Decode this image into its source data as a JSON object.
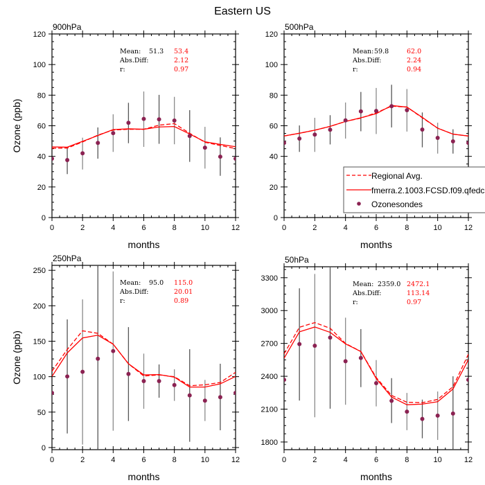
{
  "title": "Eastern US",
  "legend": {
    "placement": "inside panel 500hPa, lower-right",
    "entries": [
      {
        "label": "Regional Avg.",
        "style": "dashed",
        "color": "#ff0000"
      },
      {
        "label": "fmerra.2.1003.FCSD.f09.qfedc",
        "style": "solid",
        "color": "#ff0000"
      },
      {
        "label": "Ozonesondes",
        "style": "dot",
        "color": "#8b2252"
      }
    ]
  },
  "colors": {
    "model": "#ff0000",
    "obs": "#8b2252",
    "errorbar": "#666666",
    "stats_obs": "#000000",
    "stats_model": "#ff0000"
  },
  "chart_data": [
    {
      "type": "line",
      "title": "900hPa",
      "xlabel": "months",
      "ylabel": "Ozone (ppb)",
      "xlim": [
        0,
        12
      ],
      "ylim": [
        0,
        120
      ],
      "xticks": [
        "0",
        "2",
        "4",
        "6",
        "8",
        "10",
        "12"
      ],
      "yticks": [
        "0",
        "20",
        "40",
        "60",
        "80",
        "100",
        "120"
      ],
      "ytick_values": [
        0,
        20,
        40,
        60,
        80,
        100,
        120
      ],
      "grid": false,
      "x": [
        0,
        1,
        2,
        3,
        4,
        5,
        6,
        7,
        8,
        9,
        10,
        11,
        12
      ],
      "stats": {
        "mean_label": "Mean:",
        "absdiff_label": "Abs.Diff:",
        "r_label": "r:",
        "mean_obs": "51.3",
        "mean_model": "53.4",
        "absdiff": "2.12",
        "r": "0.97"
      },
      "series": [
        {
          "name": "Regional Avg.",
          "style": "dashed",
          "values": [
            45.3,
            45.4,
            49.4,
            53.9,
            57.2,
            57.7,
            57.7,
            60.4,
            61.4,
            55.1,
            49.2,
            47.1,
            45.1
          ]
        },
        {
          "name": "fmerra.2.1003.FCSD.f09.qfedc",
          "style": "solid",
          "values": [
            46.2,
            46.0,
            49.8,
            53.6,
            57.5,
            58.0,
            57.7,
            59.2,
            59.5,
            54.6,
            49.5,
            47.8,
            46.3
          ]
        },
        {
          "name": "Ozonesondes",
          "style": "dot",
          "values": [
            38.5,
            37.6,
            42.0,
            48.8,
            55.2,
            61.9,
            64.5,
            64.2,
            63.4,
            53.3,
            45.7,
            39.8,
            38.5
          ],
          "err_low": [
            null,
            28.4,
            31.4,
            38.5,
            42.9,
            48.6,
            46.2,
            48.2,
            47.9,
            36.4,
            32.0,
            27.3,
            null
          ],
          "err_high": [
            null,
            45.9,
            52.2,
            58.9,
            67.5,
            75.0,
            82.4,
            80.2,
            78.9,
            70.2,
            59.3,
            52.4,
            null
          ]
        }
      ]
    },
    {
      "type": "line",
      "title": "500hPa",
      "xlabel": "months",
      "ylabel": "",
      "xlim": [
        0,
        12
      ],
      "ylim": [
        0,
        120
      ],
      "xticks": [
        "0",
        "2",
        "4",
        "6",
        "8",
        "10",
        "12"
      ],
      "yticks": [
        "0",
        "20",
        "40",
        "60",
        "80",
        "100",
        "120"
      ],
      "ytick_values": [
        0,
        20,
        40,
        60,
        80,
        100,
        120
      ],
      "grid": false,
      "x": [
        0,
        1,
        2,
        3,
        4,
        5,
        6,
        7,
        8,
        9,
        10,
        11,
        12
      ],
      "stats": {
        "mean_label": "Mean:",
        "absdiff_label": "Abs.Diff:",
        "r_label": "r:",
        "mean_obs": "59.8",
        "mean_model": "62.0",
        "absdiff": "2.24",
        "r": "0.94"
      },
      "series": [
        {
          "name": "Regional Avg.",
          "style": "dashed",
          "values": [
            53.3,
            55.1,
            57.1,
            59.6,
            62.8,
            65.0,
            68.5,
            72.8,
            72.2,
            65.2,
            58.4,
            54.5,
            53.3
          ]
        },
        {
          "name": "fmerra.2.1003.FCSD.f09.qfedc",
          "style": "solid",
          "values": [
            53.3,
            55.1,
            57.1,
            59.6,
            62.8,
            65.2,
            67.9,
            73.2,
            72.2,
            65.5,
            58.4,
            54.5,
            53.3
          ]
        },
        {
          "name": "Ozonesondes",
          "style": "dot",
          "values": [
            48.8,
            51.6,
            54.2,
            57.4,
            63.5,
            69.4,
            69.7,
            72.8,
            70.2,
            57.5,
            52.1,
            49.8,
            48.8
          ],
          "err_low": [
            null,
            42.9,
            42.9,
            47.8,
            51.6,
            56.4,
            54.6,
            58.9,
            56.2,
            45.9,
            41.8,
            41.8,
            null
          ],
          "err_high": [
            null,
            60.2,
            65.2,
            66.9,
            75.2,
            82.1,
            84.7,
            86.8,
            84.0,
            68.7,
            62.0,
            57.7,
            null
          ]
        }
      ]
    },
    {
      "type": "line",
      "title": "250hPa",
      "xlabel": "months",
      "ylabel": "Ozone (ppb)",
      "xlim": [
        0,
        12
      ],
      "ylim": [
        -3,
        257
      ],
      "xticks": [
        "0",
        "2",
        "4",
        "6",
        "8",
        "10",
        "12"
      ],
      "yticks": [
        "0",
        "50",
        "100",
        "150",
        "200",
        "250"
      ],
      "ytick_values": [
        0,
        50,
        100,
        150,
        200,
        250
      ],
      "grid": false,
      "x": [
        0,
        1,
        2,
        3,
        4,
        5,
        6,
        7,
        8,
        9,
        10,
        11,
        12
      ],
      "stats": {
        "mean_label": "Mean:",
        "absdiff_label": "Abs.Diff:",
        "r_label": "r:",
        "mean_obs": "95.0",
        "mean_model": "115.0",
        "absdiff": "20.01",
        "r": "0.89"
      },
      "series": [
        {
          "name": "Regional Avg.",
          "style": "dashed",
          "values": [
            107.7,
            138.3,
            164.7,
            161.1,
            145.8,
            118.2,
            100.9,
            102.5,
            99.9,
            87.2,
            88.5,
            91.8,
            106.1
          ]
        },
        {
          "name": "fmerra.2.1003.FCSD.f09.qfedc",
          "style": "solid",
          "values": [
            100.3,
            133.5,
            154.6,
            158.5,
            145.8,
            118.2,
            102.5,
            102.9,
            99.3,
            85.3,
            85.3,
            89.8,
            100.3
          ]
        },
        {
          "name": "Ozonesondes",
          "style": "dot",
          "values": [
            77.1,
            100.3,
            106.8,
            125.3,
            136.1,
            103.8,
            93.8,
            93.8,
            88.2,
            73.6,
            66.1,
            71.0,
            77.1
          ],
          "err_low": [
            null,
            19.9,
            4.2,
            -5,
            23.8,
            37.4,
            54.7,
            70.3,
            65.8,
            8.1,
            37.4,
            24.4,
            null
          ],
          "err_high": [
            null,
            180.7,
            209.0,
            260,
            248.4,
            169.9,
            132.5,
            117.2,
            110.4,
            138.7,
            95.4,
            118.2,
            null
          ]
        }
      ]
    },
    {
      "type": "line",
      "title": "50hPa",
      "xlabel": "months",
      "ylabel": "",
      "xlim": [
        0,
        12
      ],
      "ylim": [
        1730,
        3400
      ],
      "xticks": [
        "0",
        "2",
        "4",
        "6",
        "8",
        "10",
        "12"
      ],
      "yticks": [
        "1800",
        "2100",
        "2400",
        "2700",
        "3000",
        "3300"
      ],
      "ytick_values": [
        1800,
        2100,
        2400,
        2700,
        3000,
        3300
      ],
      "grid": false,
      "x": [
        0,
        1,
        2,
        3,
        4,
        5,
        6,
        7,
        8,
        9,
        10,
        11,
        12
      ],
      "stats": {
        "mean_label": "Mean:",
        "absdiff_label": "Abs.Diff:",
        "r_label": "r:",
        "mean_obs": "2359.0",
        "mean_model": "2472.1",
        "absdiff": "113.14",
        "r": "0.97"
      },
      "series": [
        {
          "name": "Regional Avg.",
          "style": "dashed",
          "values": [
            2605,
            2848,
            2890,
            2838,
            2700,
            2626,
            2389,
            2225,
            2163,
            2159,
            2189,
            2305,
            2601
          ]
        },
        {
          "name": "fmerra.2.1003.FCSD.f09.qfedc",
          "style": "solid",
          "values": [
            2565,
            2806,
            2850,
            2801,
            2696,
            2626,
            2379,
            2210,
            2140,
            2146,
            2168,
            2284,
            2552
          ]
        },
        {
          "name": "Ozonesondes",
          "style": "dot",
          "values": [
            2368,
            2694,
            2679,
            2753,
            2537,
            2567,
            2337,
            2176,
            2077,
            2011,
            2041,
            2060,
            2368
          ],
          "err_low": [
            null,
            2178,
            2026,
            2104,
            2140,
            2301,
            2125,
            1973,
            1908,
            1834,
            1819,
            1724,
            null
          ],
          "err_high": [
            null,
            3203,
            3334,
            3467,
            2935,
            2831,
            2548,
            2383,
            2248,
            2187,
            2261,
            2400,
            null
          ]
        }
      ]
    }
  ]
}
